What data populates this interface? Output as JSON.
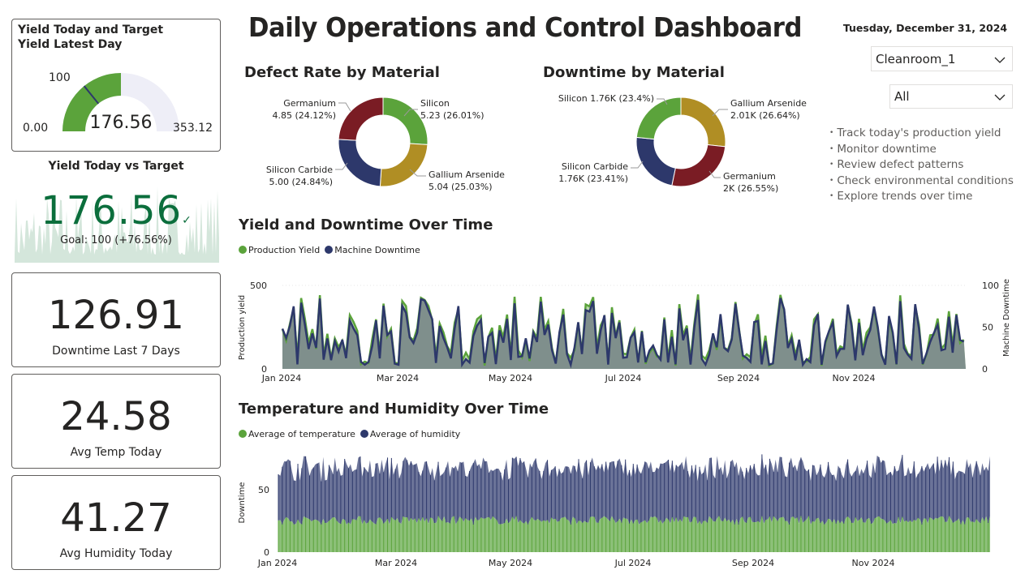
{
  "header": {
    "title": "Daily Operations and Control Dashboard",
    "date": "Tuesday, December 31, 2024"
  },
  "filters": {
    "cleanroom": {
      "selected": "Cleanroom_1"
    },
    "material": {
      "selected": "All"
    }
  },
  "notes": [
    "Track today's production yield",
    "Monitor downtime",
    "Review defect patterns",
    "Check environmental conditions",
    "Explore trends over time"
  ],
  "gauge": {
    "title": "Yield Today and Target Yield Latest Day",
    "value": 176.56,
    "value_label": "176.56",
    "min_label": "0.00",
    "max_label": "353.12",
    "target_label": "100",
    "min": 0,
    "max": 353.12,
    "target": 100,
    "fill_color": "#5BA33B",
    "track_color": "#EEEEF7"
  },
  "kpi_goal": {
    "title": "Yield Today vs Target",
    "value": "176.56",
    "goal_text": "Goal: 100 (+76.56%)",
    "value_color": "#0B6E3C"
  },
  "kpis": [
    {
      "value": "126.91",
      "label": "Downtime Last 7 Days"
    },
    {
      "value": "24.58",
      "label": "Avg Temp Today"
    },
    {
      "value": "41.27",
      "label": "Avg Humidity Today"
    }
  ],
  "chart_data": [
    {
      "type": "pie",
      "title": "Defect Rate by Material",
      "donut": true,
      "slices": [
        {
          "name": "Silicon",
          "value": 5.23,
          "label": "5.23 (26.01%)",
          "color": "#5BA33B"
        },
        {
          "name": "Gallium Arsenide",
          "value": 5.04,
          "label": "5.04 (25.03%)",
          "color": "#B08E24"
        },
        {
          "name": "Silicon Carbide",
          "value": 5.0,
          "label": "5.00 (24.84%)",
          "color": "#2D386B"
        },
        {
          "name": "Germanium",
          "value": 4.85,
          "label": "4.85 (24.12%)",
          "color": "#7A1C24"
        }
      ]
    },
    {
      "type": "pie",
      "title": "Downtime by Material",
      "donut": true,
      "slices": [
        {
          "name": "Gallium Arsenide",
          "value": 2010,
          "label": "2.01K (26.64%)",
          "color": "#B08E24"
        },
        {
          "name": "Germanium",
          "value": 2000,
          "label": "2K (26.55%)",
          "color": "#7A1C24"
        },
        {
          "name": "Silicon Carbide",
          "value": 1760,
          "label": "1.76K (23.41%)",
          "color": "#2D386B"
        },
        {
          "name": "Silicon",
          "value": 1760,
          "label": "1.76K (23.4%)",
          "color": "#5BA33B"
        }
      ]
    },
    {
      "type": "line",
      "title": "Yield and Downtime Over Time",
      "legend": "top-left",
      "series": [
        {
          "name": "Production Yield",
          "color": "#5BA33B",
          "axis": "left"
        },
        {
          "name": "Machine Downtime",
          "color": "#2D386B",
          "axis": "right"
        }
      ],
      "ylabel": "Production yield",
      "y2label": "Machine Downtime",
      "ylim": [
        0,
        500
      ],
      "y2lim": [
        0,
        100
      ],
      "yticks": [
        "0",
        "500"
      ],
      "y2ticks": [
        "0",
        "50",
        "100"
      ],
      "xticks": [
        "Jan 2024",
        "Mar 2024",
        "May 2024",
        "Jul 2024",
        "Sep 2024",
        "Nov 2024"
      ],
      "x_range": [
        "2024-01-01",
        "2024-12-31"
      ],
      "note": "Daily values for 2024; approximate range production yield 0-520, machine downtime 0-95"
    },
    {
      "type": "area",
      "title": "Temperature and Humidity Over Time",
      "stacked": true,
      "legend": "top-left",
      "series": [
        {
          "name": "Average of temperature",
          "color": "#5BA33B",
          "approx_range": [
            20,
            30
          ]
        },
        {
          "name": "Average of humidity",
          "color": "#2D386B",
          "approx_range": [
            30,
            50
          ]
        }
      ],
      "ylabel": "Downtime",
      "yticks": [
        "0",
        "50"
      ],
      "xticks": [
        "Jan 2024",
        "Mar 2024",
        "May 2024",
        "Jul 2024",
        "Sep 2024",
        "Nov 2024"
      ],
      "x_range": [
        "2024-01-01",
        "2024-12-31"
      ]
    }
  ]
}
